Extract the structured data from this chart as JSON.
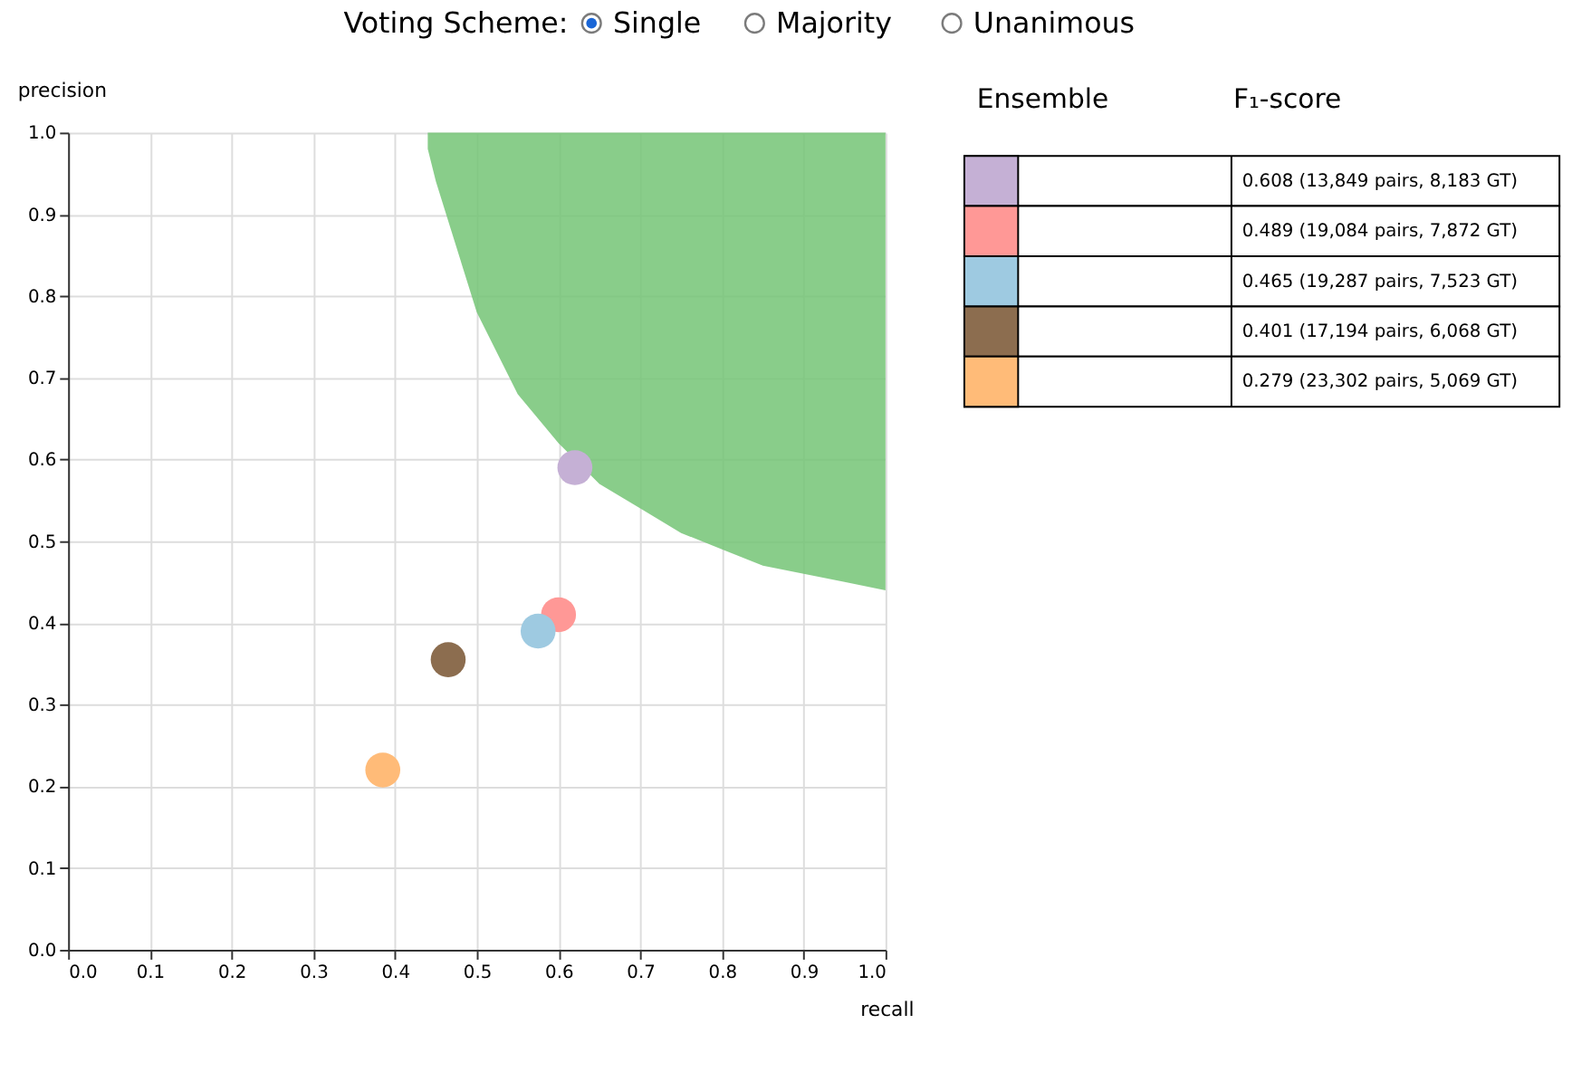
{
  "chart_data": {
    "type": "scatter",
    "xlabel": "recall",
    "ylabel": "precision",
    "legend_title": "Ensemble",
    "annotations": [
      "Voting Scheme:",
      "Single",
      "Majority",
      "Unanimous",
      "F₁-score"
    ],
    "xlim": [
      0,
      1
    ],
    "ylim": [
      0,
      1
    ],
    "xticks": [
      {
        "value": 0,
        "label": "0.0"
      },
      {
        "value": 0.1,
        "label": "0.1"
      },
      {
        "value": 0.2,
        "label": "0.2"
      },
      {
        "value": 0.3,
        "label": "0.3"
      },
      {
        "value": 0.4,
        "label": "0.4"
      },
      {
        "value": 0.5,
        "label": "0.5"
      },
      {
        "value": 0.6,
        "label": "0.6"
      },
      {
        "value": 0.7,
        "label": "0.7"
      },
      {
        "value": 0.8,
        "label": "0.8"
      },
      {
        "value": 0.9,
        "label": "0.9"
      },
      {
        "value": 1,
        "label": "1.0"
      }
    ],
    "yticks": [
      {
        "value": 0,
        "label": "0.0"
      },
      {
        "value": 0.1,
        "label": "0.1"
      },
      {
        "value": 0.2,
        "label": "0.2"
      },
      {
        "value": 0.3,
        "label": "0.3"
      },
      {
        "value": 0.4,
        "label": "0.4"
      },
      {
        "value": 0.5,
        "label": "0.5"
      },
      {
        "value": 0.6,
        "label": "0.6"
      },
      {
        "value": 0.7,
        "label": "0.7"
      },
      {
        "value": 0.8,
        "label": "0.8"
      },
      {
        "value": 0.9,
        "label": "0.9"
      },
      {
        "value": 1,
        "label": "1.0"
      }
    ],
    "grid": true,
    "legend": "right",
    "series": [
      {
        "type": "line",
        "color": "#74c476",
        "x": [
          0.44,
          0.45,
          0.5,
          0.55,
          0.6,
          0.65,
          0.7,
          0.75,
          0.8,
          0.85,
          0.9,
          0.95,
          1.0
        ],
        "values": [
          null,
          null,
          null,
          null,
          null,
          null,
          null,
          null,
          null,
          null,
          null,
          null,
          null
        ],
        "lower": [
          0.98,
          0.94,
          0.78,
          0.68,
          0.62,
          0.57,
          0.54,
          0.51,
          0.49,
          0.47,
          0.46,
          0.45,
          0.44
        ],
        "upper": [
          1,
          1,
          1,
          1,
          1,
          1,
          1,
          1,
          1,
          1,
          1,
          1,
          1
        ]
      },
      {
        "name": "0.608 (13,849 pairs, 8,183 GT)",
        "color": "#c5b0d5",
        "x": [
          0.62
        ],
        "values": [
          0.59
        ]
      },
      {
        "name": "0.489 (19,084 pairs, 7,872 GT)",
        "color": "#ff9896",
        "x": [
          0.6
        ],
        "values": [
          0.41
        ]
      },
      {
        "name": "0.465 (19,287 pairs, 7,523 GT)",
        "color": "#9ecae1",
        "x": [
          0.575
        ],
        "values": [
          0.39
        ]
      },
      {
        "name": "0.401 (17,194 pairs, 6,068 GT)",
        "color": "#8c6d4f",
        "x": [
          0.465
        ],
        "values": [
          0.355
        ]
      },
      {
        "name": "0.279 (23,302 pairs, 5,069 GT)",
        "color": "#ffbb78",
        "x": [
          0.385
        ],
        "values": [
          0.22
        ]
      }
    ]
  }
}
